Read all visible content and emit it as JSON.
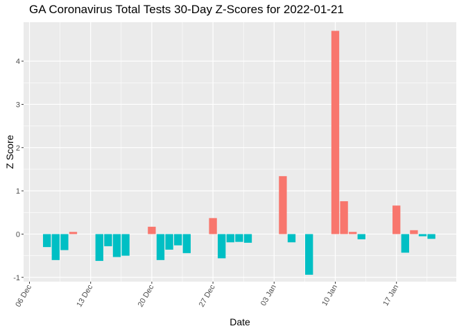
{
  "chart_data": {
    "type": "bar",
    "title": "GA Coronavirus Total Tests 30-Day Z-Scores for 2022-01-21",
    "xlabel": "Date",
    "ylabel": "Z Score",
    "x_start": "2021-12-06",
    "x_tick_labels": [
      "06 Dec",
      "13 Dec",
      "20 Dec",
      "27 Dec",
      "03 Jan",
      "10 Jan",
      "17 Jan"
    ],
    "y_ticks": [
      -1,
      0,
      1,
      2,
      3,
      4
    ],
    "ylim": [
      -1.1,
      4.9
    ],
    "grid": true,
    "legend": "none",
    "colors": {
      "positive": "#f8766d",
      "negative": "#00bfc4",
      "panel": "#ebebeb",
      "grid": "#ffffff"
    },
    "dates": [
      "2021-12-08",
      "2021-12-09",
      "2021-12-10",
      "2021-12-11",
      "2021-12-14",
      "2021-12-15",
      "2021-12-16",
      "2021-12-17",
      "2021-12-20",
      "2021-12-21",
      "2021-12-22",
      "2021-12-23",
      "2021-12-24",
      "2021-12-27",
      "2021-12-28",
      "2021-12-29",
      "2021-12-30",
      "2021-12-31",
      "2022-01-04",
      "2022-01-05",
      "2022-01-07",
      "2022-01-10",
      "2022-01-11",
      "2022-01-12",
      "2022-01-13",
      "2022-01-17",
      "2022-01-18",
      "2022-01-19",
      "2022-01-20",
      "2022-01-21"
    ],
    "values": [
      -0.3,
      -0.6,
      -0.37,
      0.05,
      -0.62,
      -0.28,
      -0.53,
      -0.5,
      0.17,
      -0.6,
      -0.36,
      -0.26,
      -0.44,
      0.37,
      -0.56,
      -0.19,
      -0.18,
      -0.2,
      1.34,
      -0.19,
      -0.94,
      4.7,
      0.76,
      0.05,
      -0.12,
      0.66,
      -0.43,
      0.09,
      -0.05,
      -0.11
    ]
  }
}
